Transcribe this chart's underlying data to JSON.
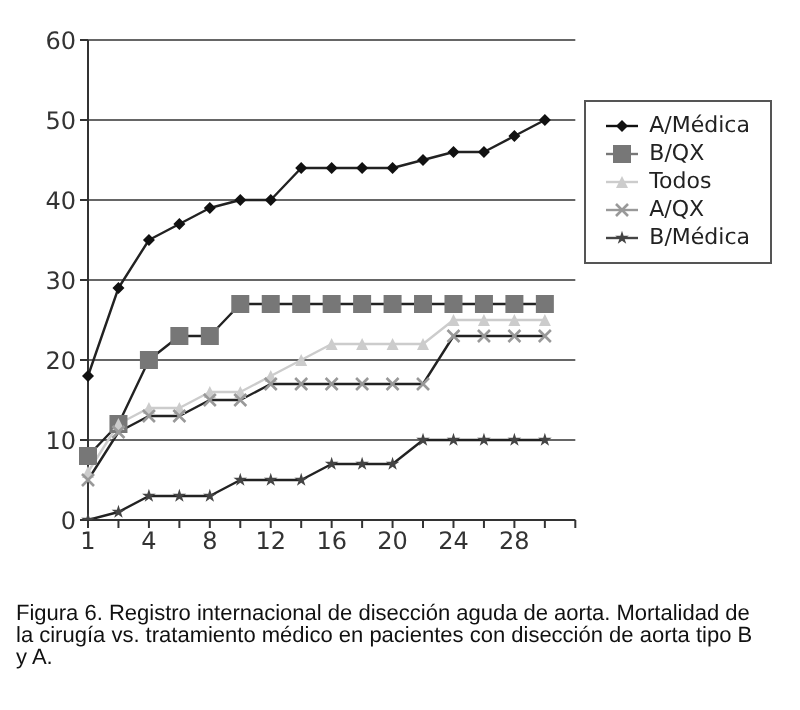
{
  "chart_data": {
    "type": "line",
    "categories": [
      "1",
      null,
      "4",
      null,
      "8",
      null,
      "12",
      null,
      "16",
      null,
      "20",
      null,
      "24",
      null,
      "28",
      null,
      null
    ],
    "series": [
      {
        "name": "A/Médica",
        "color": "#111111",
        "marker": "diamond",
        "values": [
          18,
          29,
          35,
          37,
          39,
          40,
          40,
          44,
          44,
          44,
          44,
          45,
          46,
          46,
          48,
          50,
          null
        ]
      },
      {
        "name": "B/QX",
        "color": "#777777",
        "marker": "square",
        "values": [
          8,
          12,
          20,
          23,
          23,
          27,
          27,
          27,
          27,
          27,
          27,
          27,
          27,
          27,
          27,
          27,
          null
        ]
      },
      {
        "name": "Todos",
        "color": "#cccccc",
        "marker": "triangle",
        "values": [
          6,
          12,
          14,
          14,
          16,
          16,
          18,
          20,
          22,
          22,
          22,
          22,
          25,
          25,
          25,
          25,
          null
        ]
      },
      {
        "name": "A/QX",
        "color": "#999999",
        "marker": "cross",
        "values": [
          5,
          11,
          13,
          13,
          15,
          15,
          17,
          17,
          17,
          17,
          17,
          17,
          23,
          23,
          23,
          23,
          null
        ]
      },
      {
        "name": "B/Médica",
        "color": "#444444",
        "marker": "star",
        "values": [
          0,
          1,
          3,
          3,
          3,
          5,
          5,
          5,
          7,
          7,
          7,
          10,
          10,
          10,
          10,
          10,
          null
        ]
      }
    ],
    "ylim": [
      0,
      60
    ],
    "yticks": [
      0,
      10,
      20,
      30,
      40,
      50,
      60
    ],
    "grid": "y",
    "legend": "right",
    "annotations": [
      "Figura 6. Registro internacional de disección aguda de aorta. Mortalidad de la cirugía vs. tratamiento médico en pacientes con disección de aorta tipo B y A."
    ]
  }
}
